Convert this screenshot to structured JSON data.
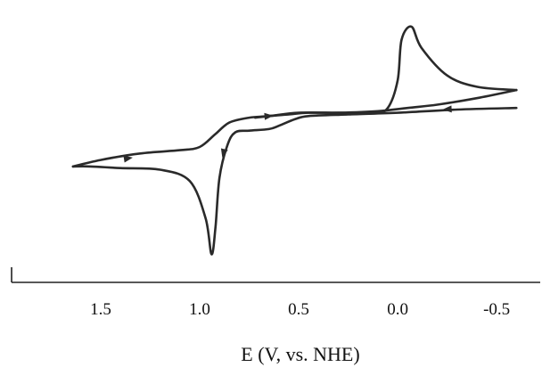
{
  "chart_data": {
    "type": "line",
    "title": "",
    "xlabel": "E (V, vs. NHE)",
    "ylabel": "",
    "x_reversed": true,
    "xlim": [
      1.95,
      -0.72
    ],
    "ylim": [
      -1.0,
      0.6
    ],
    "y_ticks_shown": false,
    "grid": false,
    "tick_labels": [
      "1.5",
      "1.0",
      "0.5",
      "0.0",
      "-0.5"
    ],
    "ticks": [
      1.5,
      1.0,
      0.5,
      0.0,
      -0.5
    ],
    "series": [
      {
        "segment": "anodic-scan",
        "points": [
          [
            -0.6,
            -0.02
          ],
          [
            -0.3,
            -0.03
          ],
          [
            0.0,
            -0.05
          ],
          [
            0.25,
            -0.06
          ],
          [
            0.45,
            -0.07
          ],
          [
            0.52,
            -0.09
          ],
          [
            0.6,
            -0.13
          ],
          [
            0.65,
            -0.15
          ],
          [
            0.75,
            -0.16
          ],
          [
            0.82,
            -0.17
          ],
          [
            0.86,
            -0.25
          ],
          [
            0.9,
            -0.45
          ],
          [
            0.92,
            -0.75
          ],
          [
            0.94,
            -0.92
          ],
          [
            0.97,
            -0.7
          ],
          [
            1.05,
            -0.47
          ],
          [
            1.2,
            -0.4
          ],
          [
            1.4,
            -0.39
          ],
          [
            1.55,
            -0.38
          ],
          [
            1.64,
            -0.38
          ]
        ]
      },
      {
        "segment": "cathodic-scan",
        "points": [
          [
            1.64,
            -0.38
          ],
          [
            1.5,
            -0.34
          ],
          [
            1.3,
            -0.3
          ],
          [
            1.1,
            -0.28
          ],
          [
            1.0,
            -0.26
          ],
          [
            0.92,
            -0.18
          ],
          [
            0.85,
            -0.11
          ],
          [
            0.75,
            -0.08
          ],
          [
            0.65,
            -0.07
          ],
          [
            0.5,
            -0.05
          ],
          [
            0.3,
            -0.05
          ],
          [
            0.12,
            -0.05
          ],
          [
            0.05,
            -0.02
          ],
          [
            0.0,
            0.15
          ],
          [
            -0.02,
            0.4
          ],
          [
            -0.07,
            0.48
          ],
          [
            -0.12,
            0.35
          ],
          [
            -0.25,
            0.18
          ],
          [
            -0.4,
            0.11
          ],
          [
            -0.6,
            0.09
          ]
        ]
      },
      {
        "segment": "return-scan",
        "points": [
          [
            -0.6,
            0.09
          ],
          [
            -0.4,
            0.04
          ],
          [
            -0.2,
            0.0
          ],
          [
            -0.05,
            -0.02
          ],
          [
            0.1,
            -0.04
          ],
          [
            0.3,
            -0.05
          ],
          [
            0.45,
            -0.05
          ],
          [
            0.55,
            -0.06
          ],
          [
            0.65,
            -0.07
          ],
          [
            0.72,
            -0.08
          ]
        ]
      }
    ],
    "arrows": [
      {
        "segment": "cathodic-scan",
        "x": 1.36,
        "y": -0.33
      },
      {
        "segment": "anodic-scan",
        "x": 0.88,
        "y": -0.3
      },
      {
        "segment": "cathodic-scan",
        "x": 0.65,
        "y": -0.07
      },
      {
        "segment": "anodic-scan",
        "x": -0.25,
        "y": -0.028
      }
    ]
  }
}
